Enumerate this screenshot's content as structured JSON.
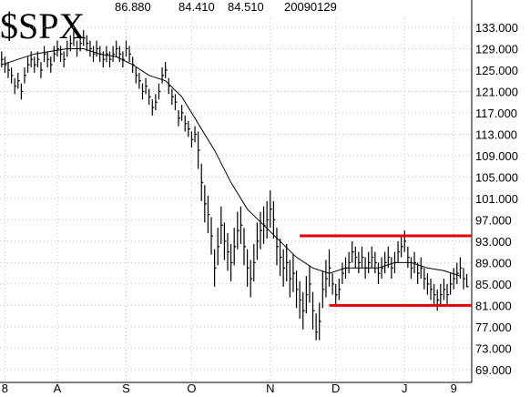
{
  "chart_data": {
    "type": "ohlc",
    "title": "$SPX",
    "stats": [
      "86.880",
      "84.410",
      "84.510",
      "20090129"
    ],
    "high": [
      128.5,
      127.5,
      126.5,
      125.5,
      123.5,
      124.5,
      122.5,
      125.5,
      127.5,
      128.5,
      127.5,
      128.5,
      126.5,
      129.5,
      128.5,
      127.5,
      129.5,
      130.5,
      129.5,
      128.5,
      130.5,
      131.5,
      132.5,
      130.5,
      131.5,
      132.5,
      131.5,
      130.5,
      129.5,
      130.5,
      129.5,
      128.5,
      129.5,
      128.5,
      129.5,
      130.5,
      129.5,
      128.5,
      130.5,
      129.5,
      127.5,
      125.5,
      124.5,
      122.5,
      123.5,
      121.5,
      119.5,
      120.5,
      122.5,
      125.5,
      126.5,
      123.5,
      121.5,
      120.5,
      117.5,
      118.5,
      116.5,
      115.5,
      113.5,
      114.5,
      113.5,
      107.5,
      103.5,
      101.5,
      97.5,
      91.5,
      95.5,
      99.5,
      96.5,
      94.5,
      92.5,
      95.5,
      98.5,
      99.5,
      95.5,
      91.5,
      89.5,
      92.5,
      96.5,
      98.5,
      99.5,
      100.5,
      102.5,
      100.5,
      95.5,
      93.5,
      91.5,
      92.5,
      89.5,
      90.5,
      87.5,
      85.5,
      83.5,
      86.5,
      88.5,
      83.5,
      79.5,
      81.5,
      87.5,
      89.5,
      91.5,
      87,
      85,
      86,
      89,
      90,
      91,
      93,
      92,
      91,
      92,
      90,
      91,
      92,
      91,
      89,
      90,
      91,
      92,
      90,
      91,
      93,
      94,
      95,
      92,
      90,
      91,
      89,
      90,
      88,
      87,
      86,
      85,
      84,
      85,
      86,
      85,
      87,
      88,
      89,
      90,
      88,
      86.88
    ],
    "low": [
      125.5,
      124.5,
      123.5,
      122.5,
      120.5,
      121.5,
      119.5,
      122.5,
      124.5,
      125.5,
      124.5,
      125.5,
      123.5,
      126.5,
      125.5,
      124.5,
      126.5,
      127.5,
      126.5,
      125.5,
      127.5,
      128.5,
      129.5,
      127.5,
      128.5,
      129.5,
      128.5,
      127.5,
      126.5,
      127.5,
      126.5,
      125.5,
      126.5,
      125.5,
      126.5,
      127.5,
      126.5,
      125.5,
      127.5,
      126.5,
      124.5,
      122.5,
      121.5,
      119.5,
      120.5,
      118.5,
      116.5,
      117.5,
      119.5,
      122.5,
      123.5,
      120.5,
      118.5,
      117.5,
      114.5,
      115.5,
      113.5,
      112.5,
      110.5,
      111.5,
      106.5,
      100.5,
      96.5,
      94.5,
      90.5,
      84.5,
      88.5,
      92.5,
      89.5,
      87.5,
      85.5,
      88.5,
      91.5,
      92.5,
      88.5,
      84.5,
      82.5,
      85.5,
      89.5,
      91.5,
      92.5,
      93.5,
      95.5,
      93.5,
      88.5,
      86.5,
      84.5,
      85.5,
      82.5,
      83.5,
      80.5,
      78.5,
      76.5,
      79.5,
      81.5,
      76.5,
      74.5,
      74.5,
      80.5,
      82.5,
      84.5,
      83,
      81,
      82,
      85,
      86,
      87,
      89,
      88,
      87,
      88,
      86,
      87,
      88,
      87,
      85,
      86,
      87,
      88,
      86,
      87,
      89,
      90,
      91,
      88,
      86,
      87,
      85,
      86,
      84,
      83,
      82,
      81,
      80,
      81,
      82,
      81,
      83,
      84,
      85,
      86,
      84,
      84.41
    ],
    "close": [
      127,
      126,
      125,
      124,
      122,
      123,
      121,
      124,
      126,
      127,
      126,
      127,
      125,
      128,
      127,
      126,
      128,
      129,
      128,
      127,
      129,
      130,
      131,
      129,
      130,
      131,
      130,
      129,
      128,
      129,
      128,
      127,
      128,
      127,
      128,
      129,
      128,
      127,
      129,
      128,
      126,
      124,
      123,
      121,
      122,
      120,
      118,
      119,
      121,
      124,
      125,
      122,
      120,
      119,
      116,
      117,
      115,
      114,
      112,
      113,
      110,
      104,
      100,
      98,
      94,
      88,
      92,
      96,
      93,
      91,
      89,
      92,
      95,
      96,
      92,
      88,
      86,
      89,
      93,
      95,
      96,
      97,
      99,
      97,
      92,
      90,
      88,
      89,
      86,
      87,
      84,
      82,
      80,
      83,
      85,
      80,
      76,
      78,
      84,
      86,
      88,
      85,
      83,
      84,
      87,
      88,
      89,
      91,
      90,
      89,
      90,
      88,
      89,
      90,
      89,
      87,
      88,
      89,
      90,
      88,
      89,
      91,
      92,
      93,
      90,
      88,
      89,
      87,
      88,
      86,
      85,
      84,
      83,
      82,
      83,
      84,
      83,
      85,
      86,
      87,
      88,
      86,
      84.51
    ],
    "ma": {
      "x": [
        0,
        5,
        10,
        15,
        20,
        25,
        30,
        35,
        40,
        45,
        50,
        55,
        60,
        65,
        70,
        75,
        80,
        85,
        90,
        95,
        100,
        105,
        110,
        115,
        120,
        125,
        130,
        135,
        140
      ],
      "values": [
        126,
        127,
        128,
        128.5,
        129,
        129,
        128,
        127.5,
        126,
        124,
        123,
        120,
        115,
        110,
        104,
        99,
        96,
        93,
        90,
        88,
        87,
        88,
        88,
        88,
        89,
        89,
        88,
        87.5,
        86.5
      ]
    },
    "levels": [
      {
        "value": 94,
        "x": [
          91,
          143.5
        ]
      },
      {
        "value": 81,
        "x": [
          100,
          143.5
        ]
      }
    ],
    "level_color": "#e00000",
    "color": "#000000",
    "xlim": [
      -0.5,
      143.5
    ],
    "xticks": [
      {
        "value": 1,
        "label": "8"
      },
      {
        "value": 17,
        "label": "A"
      },
      {
        "value": 38,
        "label": "S"
      },
      {
        "value": 58,
        "label": "O"
      },
      {
        "value": 82,
        "label": "N"
      },
      {
        "value": 102,
        "label": "D"
      },
      {
        "value": 123,
        "label": "J"
      },
      {
        "value": 138,
        "label": "9"
      }
    ],
    "ylim": [
      66.6,
      138.1
    ],
    "yticks": [
      {
        "value": 133,
        "label": "133.000"
      },
      {
        "value": 129,
        "label": "129.000"
      },
      {
        "value": 125,
        "label": "125.000"
      },
      {
        "value": 121,
        "label": "121.000"
      },
      {
        "value": 117,
        "label": "117.000"
      },
      {
        "value": 113,
        "label": "113.000"
      },
      {
        "value": 109,
        "label": "109.000"
      },
      {
        "value": 105,
        "label": "105.000"
      },
      {
        "value": 101,
        "label": "101.000"
      },
      {
        "value": 97,
        "label": "97.000"
      },
      {
        "value": 93,
        "label": "93.000"
      },
      {
        "value": 89,
        "label": "89.000"
      },
      {
        "value": 85,
        "label": "85.000"
      },
      {
        "value": 81,
        "label": "81.000"
      },
      {
        "value": 77,
        "label": "77.000"
      },
      {
        "value": 73,
        "label": "73.000"
      },
      {
        "value": 69,
        "label": "69.000"
      }
    ],
    "grid": true
  }
}
